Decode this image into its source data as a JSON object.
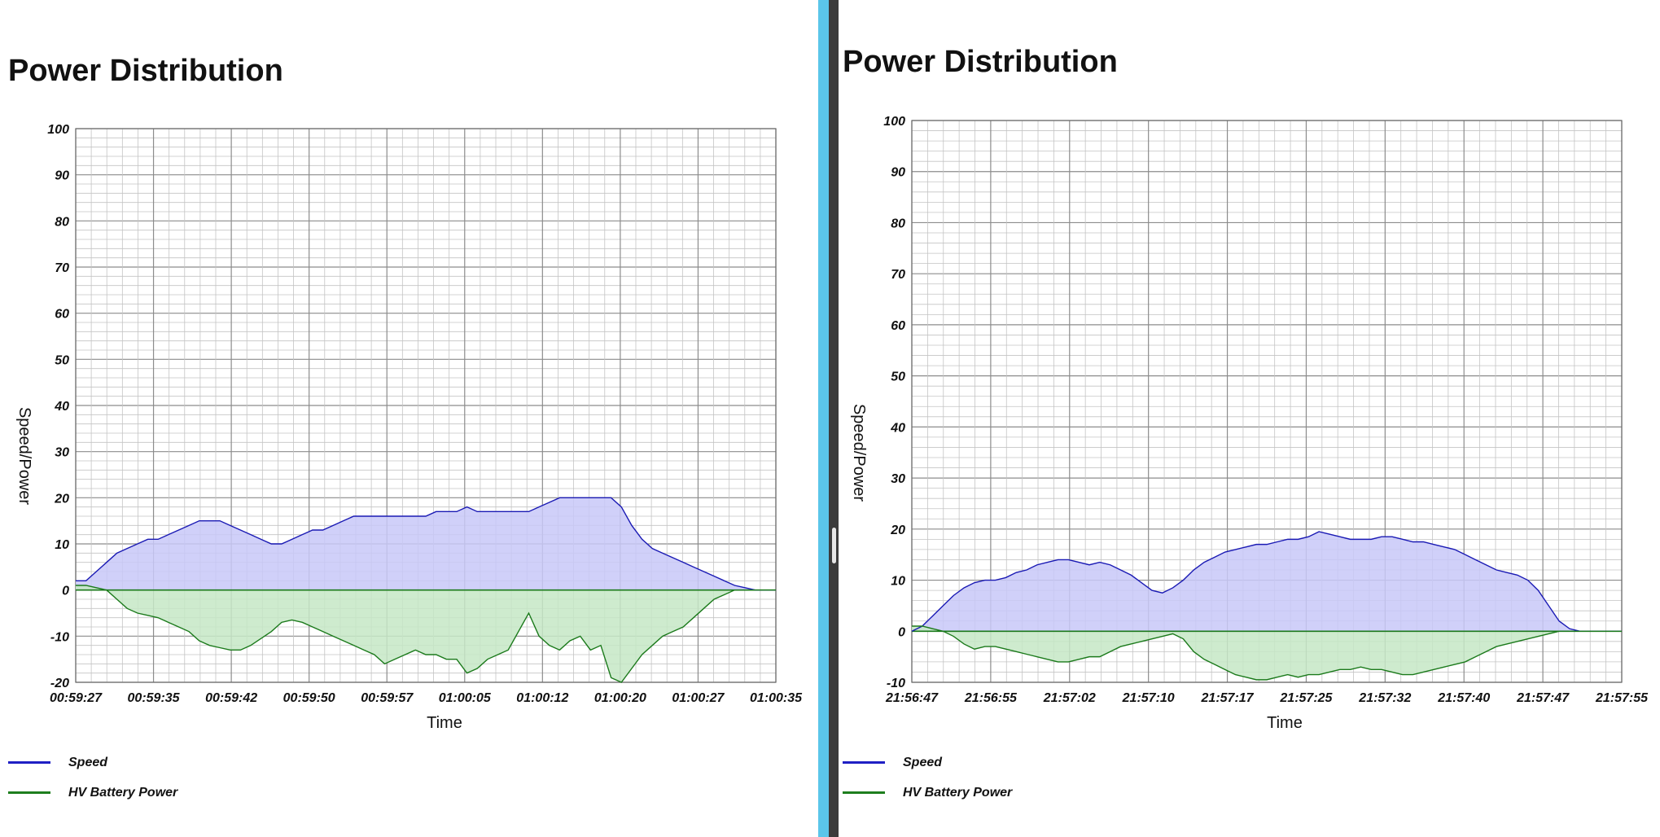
{
  "colors": {
    "speed_line": "#1a1ab4",
    "speed_fill": "#c8c8f8",
    "power_line": "#1b7a1b",
    "power_fill": "#c6e8c6",
    "legend_speed": "#1f1fc4",
    "legend_power": "#1e7e1e",
    "splitter_blue": "#5bc6ea",
    "splitter_dark": "#3b3b3b"
  },
  "panels": [
    {
      "title": "Power Distribution",
      "legend": [
        {
          "label": "Speed",
          "icon": "legend-line",
          "color": "#1f1fc4"
        },
        {
          "label": "HV Battery Power",
          "icon": "legend-line",
          "color": "#1e7e1e"
        }
      ]
    },
    {
      "title": "Power Distribution",
      "legend": [
        {
          "label": "Speed",
          "icon": "legend-line",
          "color": "#1f1fc4"
        },
        {
          "label": "HV Battery Power",
          "icon": "legend-line",
          "color": "#1e7e1e"
        }
      ]
    }
  ],
  "chart_data": [
    {
      "type": "area",
      "title": "Power Distribution",
      "xlabel": "Time",
      "ylabel": "Speed/Power",
      "ylim": [
        -20,
        100
      ],
      "y_ticks": [
        100,
        90,
        80,
        70,
        60,
        50,
        40,
        30,
        20,
        10,
        0,
        -10,
        -20
      ],
      "x_ticks": [
        "00:59:27",
        "00:59:35",
        "00:59:42",
        "00:59:50",
        "00:59:57",
        "01:00:05",
        "01:00:12",
        "01:00:20",
        "01:00:27",
        "01:00:35"
      ],
      "x_range_seconds": [
        0,
        68
      ],
      "grid": true,
      "legend_position": "bottom-left",
      "series": [
        {
          "name": "Speed",
          "x": [
            0,
            1,
            2,
            3,
            4,
            5,
            6,
            7,
            8,
            9,
            10,
            11,
            12,
            13,
            14,
            15,
            16,
            17,
            18,
            19,
            20,
            21,
            22,
            23,
            24,
            25,
            26,
            27,
            28,
            29,
            30,
            31,
            32,
            33,
            34,
            35,
            36,
            37,
            38,
            39,
            40,
            41,
            42,
            43,
            44,
            45,
            46,
            47,
            48,
            49,
            50,
            51,
            52,
            53,
            54,
            55,
            56,
            57,
            58,
            59,
            60,
            61,
            62,
            63,
            64,
            65,
            66,
            67,
            68
          ],
          "values": [
            2,
            2,
            4,
            6,
            8,
            9,
            10,
            11,
            11,
            12,
            13,
            14,
            15,
            15,
            15,
            14,
            13,
            12,
            11,
            10,
            10,
            11,
            12,
            13,
            13,
            14,
            15,
            16,
            16,
            16,
            16,
            16,
            16,
            16,
            16,
            17,
            17,
            17,
            18,
            17,
            17,
            17,
            17,
            17,
            17,
            18,
            19,
            20,
            20,
            20,
            20,
            20,
            20,
            18,
            14,
            11,
            9,
            8,
            7,
            6,
            5,
            4,
            3,
            2,
            1,
            0.5,
            0,
            0,
            0
          ]
        },
        {
          "name": "HV Battery Power",
          "x": [
            0,
            1,
            2,
            3,
            4,
            5,
            6,
            7,
            8,
            9,
            10,
            11,
            12,
            13,
            14,
            15,
            16,
            17,
            18,
            19,
            20,
            21,
            22,
            23,
            24,
            25,
            26,
            27,
            28,
            29,
            30,
            31,
            32,
            33,
            34,
            35,
            36,
            37,
            38,
            39,
            40,
            41,
            42,
            43,
            44,
            45,
            46,
            47,
            48,
            49,
            50,
            51,
            52,
            53,
            54,
            55,
            56,
            57,
            58,
            59,
            60,
            61,
            62,
            63,
            64,
            65,
            66,
            67,
            68
          ],
          "values": [
            1,
            1,
            0.5,
            0,
            -2,
            -4,
            -5,
            -5.5,
            -6,
            -7,
            -8,
            -9,
            -11,
            -12,
            -12.5,
            -13,
            -13,
            -12,
            -10.5,
            -9,
            -7,
            -6.5,
            -7,
            -8,
            -9,
            -10,
            -11,
            -12,
            -13,
            -14,
            -16,
            -15,
            -14,
            -13,
            -14,
            -14,
            -15,
            -15,
            -18,
            -17,
            -15,
            -14,
            -13,
            -9,
            -5,
            -10,
            -12,
            -13,
            -11,
            -10,
            -13,
            -12,
            -19,
            -20,
            -17,
            -14,
            -12,
            -10,
            -9,
            -8,
            -6,
            -4,
            -2,
            -1,
            0,
            0,
            0,
            0,
            0
          ]
        }
      ]
    },
    {
      "type": "area",
      "title": "Power Distribution",
      "xlabel": "Time",
      "ylabel": "Speed/Power",
      "ylim": [
        -10,
        100
      ],
      "y_ticks": [
        100,
        90,
        80,
        70,
        60,
        50,
        40,
        30,
        20,
        10,
        0,
        -10
      ],
      "x_ticks": [
        "21:56:47",
        "21:56:55",
        "21:57:02",
        "21:57:10",
        "21:57:17",
        "21:57:25",
        "21:57:32",
        "21:57:40",
        "21:57:47",
        "21:57:55"
      ],
      "x_range_seconds": [
        0,
        68
      ],
      "grid": true,
      "legend_position": "bottom-left",
      "series": [
        {
          "name": "Speed",
          "x": [
            0,
            1,
            2,
            3,
            4,
            5,
            6,
            7,
            8,
            9,
            10,
            11,
            12,
            13,
            14,
            15,
            16,
            17,
            18,
            19,
            20,
            21,
            22,
            23,
            24,
            25,
            26,
            27,
            28,
            29,
            30,
            31,
            32,
            33,
            34,
            35,
            36,
            37,
            38,
            39,
            40,
            41,
            42,
            43,
            44,
            45,
            46,
            47,
            48,
            49,
            50,
            51,
            52,
            53,
            54,
            55,
            56,
            57,
            58,
            59,
            60,
            61,
            62,
            63,
            64,
            65,
            66,
            67,
            68
          ],
          "values": [
            0,
            1,
            3,
            5,
            7,
            8.5,
            9.5,
            10,
            10,
            10.5,
            11.5,
            12,
            13,
            13.5,
            14,
            14,
            13.5,
            13,
            13.5,
            13,
            12,
            11,
            9.5,
            8,
            7.5,
            8.5,
            10,
            12,
            13.5,
            14.5,
            15.5,
            16,
            16.5,
            17,
            17,
            17.5,
            18,
            18,
            18.5,
            19.5,
            19,
            18.5,
            18,
            18,
            18,
            18.5,
            18.5,
            18,
            17.5,
            17.5,
            17,
            16.5,
            16,
            15,
            14,
            13,
            12,
            11.5,
            11,
            10,
            8,
            5,
            2,
            0.5,
            0,
            0,
            0,
            0,
            0
          ]
        },
        {
          "name": "HV Battery Power",
          "x": [
            0,
            1,
            2,
            3,
            4,
            5,
            6,
            7,
            8,
            9,
            10,
            11,
            12,
            13,
            14,
            15,
            16,
            17,
            18,
            19,
            20,
            21,
            22,
            23,
            24,
            25,
            26,
            27,
            28,
            29,
            30,
            31,
            32,
            33,
            34,
            35,
            36,
            37,
            38,
            39,
            40,
            41,
            42,
            43,
            44,
            45,
            46,
            47,
            48,
            49,
            50,
            51,
            52,
            53,
            54,
            55,
            56,
            57,
            58,
            59,
            60,
            61,
            62,
            63,
            64,
            65,
            66,
            67,
            68
          ],
          "values": [
            1,
            1,
            0.5,
            0,
            -1,
            -2.5,
            -3.5,
            -3,
            -3,
            -3.5,
            -4,
            -4.5,
            -5,
            -5.5,
            -6,
            -6,
            -5.5,
            -5,
            -5,
            -4,
            -3,
            -2.5,
            -2,
            -1.5,
            -1,
            -0.5,
            -1.5,
            -4,
            -5.5,
            -6.5,
            -7.5,
            -8.5,
            -9,
            -9.5,
            -9.5,
            -9,
            -8.5,
            -9,
            -8.5,
            -8.5,
            -8,
            -7.5,
            -7.5,
            -7,
            -7.5,
            -7.5,
            -8,
            -8.5,
            -8.5,
            -8,
            -7.5,
            -7,
            -6.5,
            -6,
            -5,
            -4,
            -3,
            -2.5,
            -2,
            -1.5,
            -1,
            -0.5,
            0,
            0,
            0,
            0,
            0,
            0,
            0
          ]
        }
      ]
    }
  ]
}
